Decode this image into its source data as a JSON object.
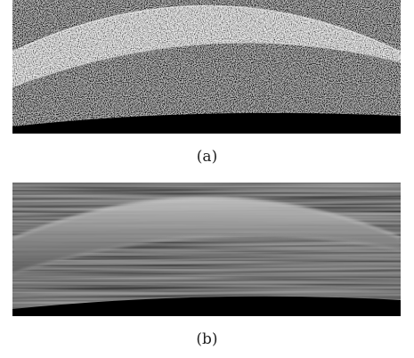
{
  "figure": {
    "panels": [
      {
        "caption": "(a)"
      },
      {
        "caption": "(b)"
      }
    ]
  },
  "colors": {
    "background": "#ffffff",
    "image_dark": "#000000",
    "caption_text": "#222222"
  }
}
